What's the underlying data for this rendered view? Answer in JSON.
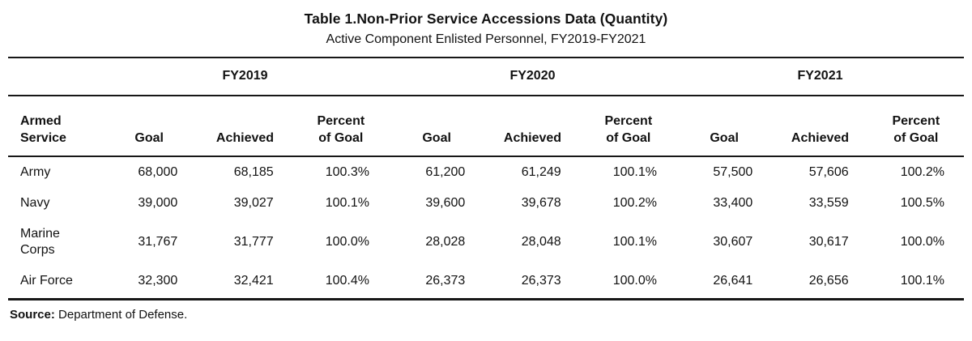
{
  "title": "Table 1.Non-Prior Service Accessions Data (Quantity)",
  "subtitle": "Active Component Enlisted Personnel, FY2019-FY2021",
  "table": {
    "year_groups": [
      {
        "label": "FY2019"
      },
      {
        "label": "FY2020"
      },
      {
        "label": "FY2021"
      }
    ],
    "headers": {
      "service": [
        "Armed",
        "Service"
      ],
      "goal": "Goal",
      "achieved": "Achieved",
      "percent": [
        "Percent",
        "of Goal"
      ]
    },
    "rows": [
      {
        "service": "Army",
        "cells": [
          "68,000",
          "68,185",
          "100.3%",
          "61,200",
          "61,249",
          "100.1%",
          "57,500",
          "57,606",
          "100.2%"
        ]
      },
      {
        "service": "Navy",
        "cells": [
          "39,000",
          "39,027",
          "100.1%",
          "39,600",
          "39,678",
          "100.2%",
          "33,400",
          "33,559",
          "100.5%"
        ]
      },
      {
        "service": "Marine Corps",
        "cells": [
          "31,767",
          "31,777",
          "100.0%",
          "28,028",
          "28,048",
          "100.1%",
          "30,607",
          "30,617",
          "100.0%"
        ]
      },
      {
        "service": "Air Force",
        "cells": [
          "32,300",
          "32,421",
          "100.4%",
          "26,373",
          "26,373",
          "100.0%",
          "26,641",
          "26,656",
          "100.1%"
        ]
      }
    ]
  },
  "source": {
    "label": "Source:",
    "text": "Department of Defense."
  }
}
